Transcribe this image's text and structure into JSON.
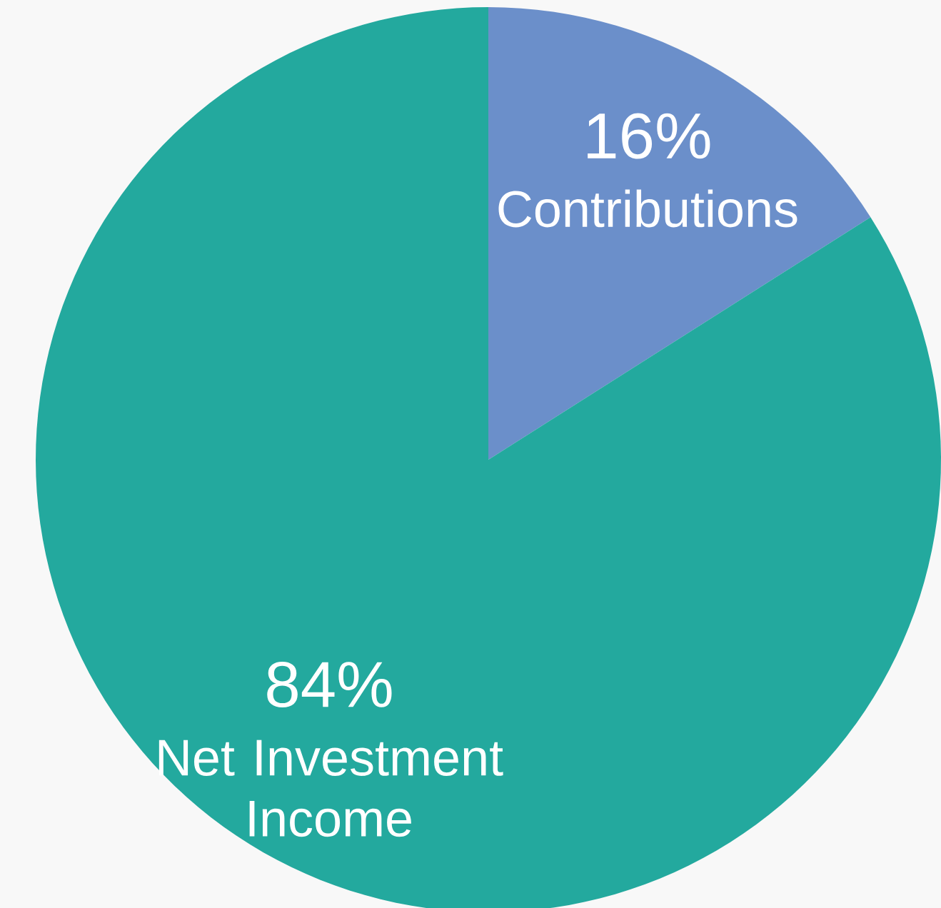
{
  "chart_data": {
    "type": "pie",
    "categories": [
      "Contributions",
      "Net Investment Income"
    ],
    "values": [
      16,
      84
    ],
    "colors": [
      "#6b8fca",
      "#23a99e"
    ],
    "value_labels": [
      "16%",
      "84%"
    ]
  }
}
